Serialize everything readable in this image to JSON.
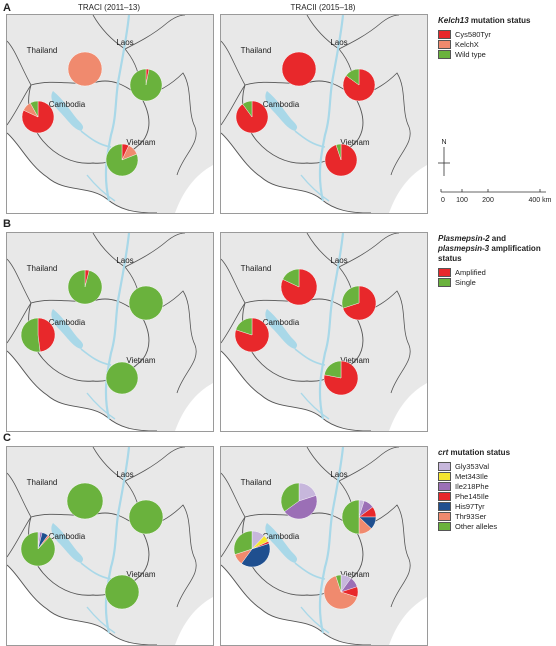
{
  "column_titles": [
    "TRACI (2011–13)",
    "TRACII (2015–18)"
  ],
  "country_labels": [
    "Thailand",
    "Laos",
    "Cambodia",
    "Vietnam"
  ],
  "compass": "N",
  "scale": {
    "labels": [
      "0",
      "100",
      "200",
      "400 km"
    ]
  },
  "panels": [
    {
      "letter": "A",
      "legend": {
        "title_html": "<span class='it'>Kelch13</span> mutation status",
        "title": "Kelch13 mutation status",
        "items": [
          {
            "label": "Cys580Tyr",
            "color": "#e8282b"
          },
          {
            "label": "KelchX",
            "color": "#f08a6e"
          },
          {
            "label": "Wild type",
            "color": "#6ab23d"
          }
        ]
      },
      "maps": [
        {
          "sites": [
            {
              "slices": [
                0.0,
                1.0,
                0.0
              ]
            },
            {
              "slices": [
                0.03,
                0.0,
                0.97
              ]
            },
            {
              "slices": [
                0.82,
                0.1,
                0.08
              ]
            },
            {
              "slices": [
                0.07,
                0.12,
                0.81
              ]
            }
          ]
        },
        {
          "sites": [
            {
              "slices": [
                1.0,
                0.0,
                0.0
              ]
            },
            {
              "slices": [
                0.85,
                0.0,
                0.15
              ]
            },
            {
              "slices": [
                0.9,
                0.0,
                0.1
              ]
            },
            {
              "slices": [
                0.95,
                0.0,
                0.05
              ]
            }
          ]
        }
      ]
    },
    {
      "letter": "B",
      "legend": {
        "title_html": "<span class='it'>Plasmepsin-2</span> and <span class='it'>plasmepsin-3</span> amplification status",
        "title": "Plasmepsin-2 and plasmepsin-3 amplification status",
        "items": [
          {
            "label": "Amplified",
            "color": "#e8282b"
          },
          {
            "label": "Single",
            "color": "#6ab23d"
          }
        ]
      },
      "maps": [
        {
          "sites": [
            {
              "slices": [
                0.04,
                0.96
              ]
            },
            {
              "slices": [
                0.0,
                1.0
              ]
            },
            {
              "slices": [
                0.48,
                0.52
              ]
            },
            {
              "slices": [
                0.0,
                1.0
              ]
            }
          ]
        },
        {
          "sites": [
            {
              "slices": [
                0.82,
                0.18
              ]
            },
            {
              "slices": [
                0.7,
                0.3
              ]
            },
            {
              "slices": [
                0.8,
                0.2
              ]
            },
            {
              "slices": [
                0.78,
                0.22
              ]
            }
          ]
        }
      ]
    },
    {
      "letter": "C",
      "legend": {
        "title_html": "<span class='it'>crt</span> mutation status",
        "title": "crt mutation status",
        "items": [
          {
            "label": "Gly353Val",
            "color": "#c7b7dc"
          },
          {
            "label": "Met343Ile",
            "color": "#f5e62e"
          },
          {
            "label": "Ile218Phe",
            "color": "#9b6fb6"
          },
          {
            "label": "Phe145Ile",
            "color": "#e8282b"
          },
          {
            "label": "His97Tyr",
            "color": "#1f4f8f"
          },
          {
            "label": "Thr93Ser",
            "color": "#f08a6e"
          },
          {
            "label": "Other alleles",
            "color": "#6ab23d"
          }
        ]
      },
      "maps": [
        {
          "sites": [
            {
              "slices": [
                0,
                0,
                0,
                0,
                0,
                0,
                1.0
              ]
            },
            {
              "slices": [
                0,
                0,
                0,
                0,
                0,
                0,
                1.0
              ]
            },
            {
              "slices": [
                0.02,
                0,
                0.02,
                0,
                0.06,
                0.02,
                0.88
              ]
            },
            {
              "slices": [
                0,
                0,
                0,
                0,
                0,
                0,
                1.0
              ]
            }
          ]
        },
        {
          "sites": [
            {
              "slices": [
                0.2,
                0,
                0.45,
                0,
                0,
                0,
                0.35
              ]
            },
            {
              "slices": [
                0.05,
                0,
                0.1,
                0.1,
                0.12,
                0.13,
                0.5
              ]
            },
            {
              "slices": [
                0.12,
                0.06,
                0,
                0.02,
                0.4,
                0.1,
                0.3
              ]
            },
            {
              "slices": [
                0.1,
                0,
                0.1,
                0.1,
                0,
                0.65,
                0.05
              ]
            }
          ]
        }
      ]
    }
  ]
}
